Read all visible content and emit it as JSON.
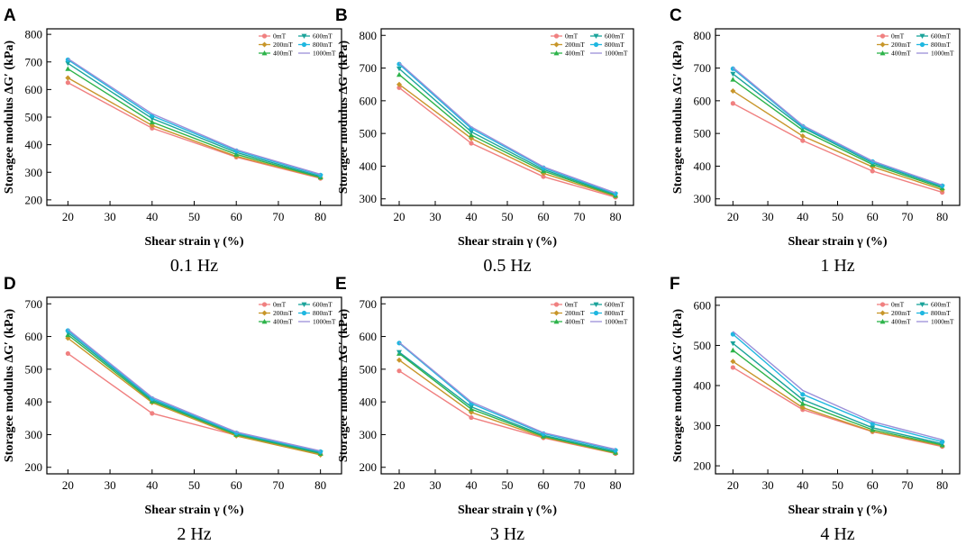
{
  "figure": {
    "series_colors": {
      "0mT": "#f08080",
      "200mT": "#c8962a",
      "400mT": "#2db34a",
      "600mT": "#1aa39a",
      "800mT": "#1fb7e0",
      "1000mT": "#9a8fd8"
    }
  },
  "chart_data": [
    {
      "type": "line",
      "panel": "A",
      "caption": "0.1 Hz",
      "xlabel": "Shear strain γ (%)",
      "ylabel": "Storagee modulus ΔG′ (kPa)",
      "x": [
        20,
        40,
        60,
        80
      ],
      "xlim": [
        15,
        85
      ],
      "xticks": [
        20,
        30,
        40,
        50,
        60,
        70,
        80
      ],
      "ylim": [
        180,
        820
      ],
      "yticks": [
        200,
        300,
        400,
        500,
        600,
        700,
        800
      ],
      "legend": "top-right",
      "series": [
        {
          "name": "0mT",
          "values": [
            625,
            460,
            355,
            278
          ]
        },
        {
          "name": "200mT",
          "values": [
            642,
            470,
            358,
            280
          ]
        },
        {
          "name": "400mT",
          "values": [
            675,
            482,
            365,
            282
          ]
        },
        {
          "name": "600mT",
          "values": [
            695,
            495,
            372,
            285
          ]
        },
        {
          "name": "800mT",
          "values": [
            708,
            505,
            378,
            290
          ]
        },
        {
          "name": "1000mT",
          "values": [
            712,
            512,
            382,
            293
          ]
        }
      ]
    },
    {
      "type": "line",
      "panel": "B",
      "caption": "0.5 Hz",
      "xlabel": "Shear strain γ (%)",
      "ylabel": "Storagee modulus ΔG′ (kPa)",
      "x": [
        20,
        40,
        60,
        80
      ],
      "xlim": [
        15,
        85
      ],
      "xticks": [
        20,
        30,
        40,
        50,
        60,
        70,
        80
      ],
      "ylim": [
        280,
        820
      ],
      "yticks": [
        300,
        400,
        500,
        600,
        700,
        800
      ],
      "legend": "top-right",
      "series": [
        {
          "name": "0mT",
          "values": [
            640,
            470,
            368,
            305
          ]
        },
        {
          "name": "200mT",
          "values": [
            650,
            485,
            378,
            308
          ]
        },
        {
          "name": "400mT",
          "values": [
            680,
            495,
            385,
            310
          ]
        },
        {
          "name": "600mT",
          "values": [
            698,
            505,
            390,
            313
          ]
        },
        {
          "name": "800mT",
          "values": [
            712,
            515,
            395,
            316
          ]
        },
        {
          "name": "1000mT",
          "values": [
            716,
            520,
            398,
            318
          ]
        }
      ]
    },
    {
      "type": "line",
      "panel": "C",
      "caption": "1 Hz",
      "xlabel": "Shear strain γ (%)",
      "ylabel": "Storagee modulus ΔG′ (kPa)",
      "x": [
        20,
        40,
        60,
        80
      ],
      "xlim": [
        15,
        85
      ],
      "xticks": [
        20,
        30,
        40,
        50,
        60,
        70,
        80
      ],
      "ylim": [
        280,
        820
      ],
      "yticks": [
        300,
        400,
        500,
        600,
        700,
        800
      ],
      "legend": "top-right",
      "series": [
        {
          "name": "0mT",
          "values": [
            592,
            478,
            385,
            320
          ]
        },
        {
          "name": "200mT",
          "values": [
            630,
            492,
            398,
            328
          ]
        },
        {
          "name": "400mT",
          "values": [
            665,
            510,
            405,
            333
          ]
        },
        {
          "name": "600mT",
          "values": [
            682,
            518,
            410,
            337
          ]
        },
        {
          "name": "800mT",
          "values": [
            698,
            522,
            414,
            340
          ]
        },
        {
          "name": "1000mT",
          "values": [
            702,
            525,
            416,
            342
          ]
        }
      ]
    },
    {
      "type": "line",
      "panel": "D",
      "caption": "2 Hz",
      "xlabel": "Shear strain γ (%)",
      "ylabel": "Storagee modulus ΔG′ (kPa)",
      "x": [
        20,
        40,
        60,
        80
      ],
      "xlim": [
        15,
        85
      ],
      "xticks": [
        20,
        30,
        40,
        50,
        60,
        70,
        80
      ],
      "ylim": [
        180,
        720
      ],
      "yticks": [
        200,
        300,
        400,
        500,
        600,
        700
      ],
      "legend": "top-right",
      "series": [
        {
          "name": "0mT",
          "values": [
            548,
            365,
            298,
            240
          ]
        },
        {
          "name": "200mT",
          "values": [
            595,
            398,
            296,
            238
          ]
        },
        {
          "name": "400mT",
          "values": [
            605,
            402,
            300,
            242
          ]
        },
        {
          "name": "600mT",
          "values": [
            612,
            406,
            303,
            245
          ]
        },
        {
          "name": "800mT",
          "values": [
            618,
            410,
            305,
            248
          ]
        },
        {
          "name": "1000mT",
          "values": [
            622,
            414,
            308,
            250
          ]
        }
      ]
    },
    {
      "type": "line",
      "panel": "E",
      "caption": "3 Hz",
      "xlabel": "Shear strain γ (%)",
      "ylabel": "Storagee modulus ΔG′ (kPa)",
      "x": [
        20,
        40,
        60,
        80
      ],
      "xlim": [
        15,
        85
      ],
      "xticks": [
        20,
        30,
        40,
        50,
        60,
        70,
        80
      ],
      "ylim": [
        180,
        720
      ],
      "yticks": [
        200,
        300,
        400,
        500,
        600,
        700
      ],
      "legend": "top-right",
      "series": [
        {
          "name": "0mT",
          "values": [
            495,
            352,
            290,
            242
          ]
        },
        {
          "name": "200mT",
          "values": [
            528,
            368,
            292,
            243
          ]
        },
        {
          "name": "400mT",
          "values": [
            548,
            378,
            295,
            245
          ]
        },
        {
          "name": "600mT",
          "values": [
            552,
            385,
            298,
            248
          ]
        },
        {
          "name": "800mT",
          "values": [
            580,
            395,
            303,
            252
          ]
        },
        {
          "name": "1000mT",
          "values": [
            582,
            400,
            306,
            255
          ]
        }
      ]
    },
    {
      "type": "line",
      "panel": "F",
      "caption": "4 Hz",
      "xlabel": "Shear strain γ (%)",
      "ylabel": "Storagee modulus ΔG′ (kPa)",
      "x": [
        20,
        40,
        60,
        80
      ],
      "xlim": [
        15,
        85
      ],
      "xticks": [
        20,
        30,
        40,
        50,
        60,
        70,
        80
      ],
      "ylim": [
        180,
        620
      ],
      "yticks": [
        200,
        300,
        400,
        500,
        600
      ],
      "legend": "top-right",
      "series": [
        {
          "name": "0mT",
          "values": [
            445,
            340,
            285,
            248
          ]
        },
        {
          "name": "200mT",
          "values": [
            460,
            345,
            286,
            250
          ]
        },
        {
          "name": "400mT",
          "values": [
            488,
            355,
            290,
            252
          ]
        },
        {
          "name": "600mT",
          "values": [
            505,
            365,
            295,
            255
          ]
        },
        {
          "name": "800mT",
          "values": [
            528,
            378,
            305,
            260
          ]
        },
        {
          "name": "1000mT",
          "values": [
            535,
            388,
            310,
            265
          ]
        }
      ]
    }
  ]
}
